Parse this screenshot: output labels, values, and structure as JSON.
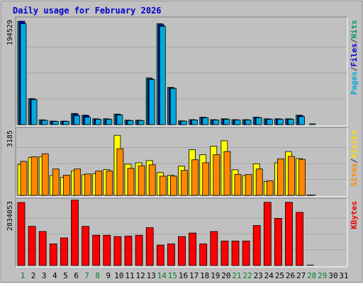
{
  "chart_data": {
    "type": "bar",
    "title": "Daily usage for February 2026",
    "x_labels": [
      "1",
      "2",
      "3",
      "4",
      "5",
      "6",
      "7",
      "8",
      "9",
      "10",
      "11",
      "12",
      "13",
      "14",
      "15",
      "16",
      "17",
      "18",
      "19",
      "20",
      "21",
      "22",
      "23",
      "24",
      "25",
      "26",
      "27",
      "28",
      "29",
      "30",
      "31"
    ],
    "weekend_days": [
      1,
      7,
      8,
      14,
      15,
      21,
      22,
      28,
      29
    ],
    "panels": [
      {
        "id": "pages-files-hits",
        "max_label": "194529",
        "ymax": 194529,
        "legend": [
          {
            "text": "Pages",
            "color": "#00aadd"
          },
          {
            "text": "/",
            "color": "#333333"
          },
          {
            "text": "Files",
            "color": "#0000cc"
          },
          {
            "text": "/",
            "color": "#333333"
          },
          {
            "text": "Hits",
            "color": "#009966"
          }
        ],
        "series": [
          {
            "name": "Hits",
            "color": "#009966",
            "values": [
              194529,
              49000,
              9000,
              6600,
              6600,
              21000,
              17800,
              11000,
              11000,
              19800,
              8300,
              8300,
              88000,
              190000,
              70000,
              7100,
              9300,
              14000,
              9300,
              11000,
              9300,
              9300,
              14000,
              11000,
              11000,
              11000,
              17800,
              0
            ]
          },
          {
            "name": "Files",
            "color": "#0000cc",
            "values": [
              194529,
              48000,
              8500,
              6300,
              6300,
              20000,
              17000,
              10500,
              10500,
              19000,
              7900,
              7900,
              86000,
              188000,
              69000,
              6800,
              8900,
              13500,
              8900,
              10500,
              8900,
              8900,
              13500,
              10500,
              10500,
              10500,
              17000,
              0
            ]
          },
          {
            "name": "Pages",
            "color": "#00aadd",
            "values": [
              190000,
              47000,
              8000,
              6000,
              6000,
              17000,
              14000,
              10000,
              10000,
              18000,
              7500,
              7500,
              85000,
              185000,
              68000,
              6500,
              8500,
              13000,
              8500,
              10000,
              8500,
              8500,
              13000,
              10000,
              10000,
              10000,
              15000,
              1500
            ]
          }
        ]
      },
      {
        "id": "visits-sites",
        "max_label": "3185",
        "ymax": 3185,
        "legend": [
          {
            "text": "Sites",
            "color": "#ff8800"
          },
          {
            "text": "/",
            "color": "#333333"
          },
          {
            "text": "Visits",
            "color": "#ffdd00"
          }
        ],
        "series": [
          {
            "name": "Visits",
            "color": "#ffff00",
            "values": [
              1550,
              1900,
              1930,
              990,
              900,
              1230,
              1030,
              1090,
              1290,
              3000,
              1560,
              1630,
              1740,
              1140,
              1010,
              1460,
              2280,
              2030,
              2460,
              2730,
              1280,
              990,
              1580,
              690,
              1630,
              2190,
              1840,
              20
            ]
          },
          {
            "name": "Sites",
            "color": "#ff8800",
            "values": [
              1700,
              1930,
              2080,
              1320,
              1010,
              1320,
              1070,
              1220,
              1220,
              2330,
              1350,
              1480,
              1530,
              960,
              960,
              1250,
              1780,
              1630,
              2040,
              2190,
              1050,
              1040,
              1320,
              730,
              1830,
              1950,
              1800,
              0
            ]
          }
        ]
      },
      {
        "id": "kbytes",
        "max_label": "2834053",
        "ymax": 2834053,
        "legend": [
          {
            "text": "KBytes",
            "color": "#ee0000"
          }
        ],
        "series": [
          {
            "name": "KBytes",
            "color": "#ff0000",
            "values": [
              2834053,
              1760000,
              1530000,
              970000,
              1240000,
              2940000,
              1760000,
              1360000,
              1360000,
              1300000,
              1320000,
              1360000,
              1700000,
              920000,
              970000,
              1300000,
              1460000,
              970000,
              1530000,
              1100000,
              1100000,
              1100000,
              1800000,
              2840000,
              2120000,
              2840000,
              2390000,
              0
            ]
          }
        ]
      }
    ]
  }
}
